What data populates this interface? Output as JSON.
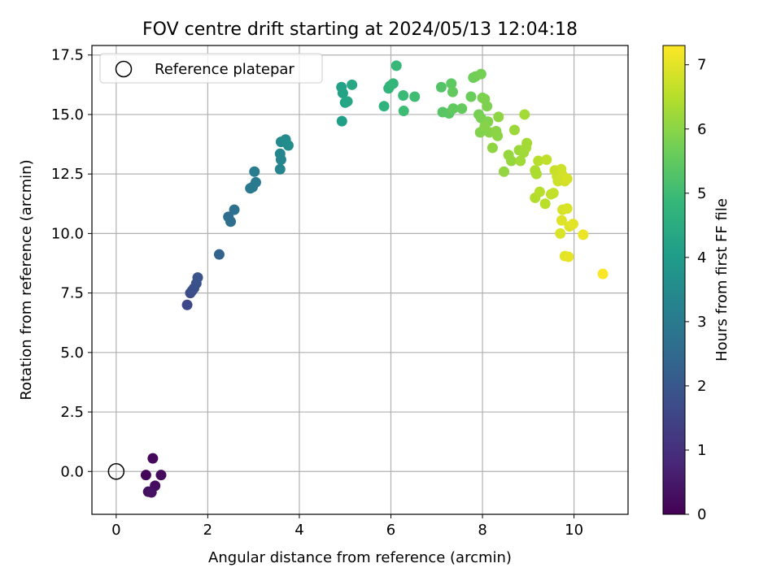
{
  "chart_data": {
    "type": "scatter",
    "title": "FOV centre drift starting at 2024/05/13 12:04:18",
    "xlabel": "Angular distance from reference (arcmin)",
    "ylabel": "Rotation from reference (arcmin)",
    "xlim": [
      -0.53,
      11.18
    ],
    "ylim": [
      -1.8,
      17.9
    ],
    "xticks": [
      0,
      2,
      4,
      6,
      8,
      10
    ],
    "yticks": [
      0.0,
      2.5,
      5.0,
      7.5,
      10.0,
      12.5,
      15.0,
      17.5
    ],
    "xtick_labels": [
      "0",
      "2",
      "4",
      "6",
      "8",
      "10"
    ],
    "ytick_labels": [
      "0.0",
      "2.5",
      "5.0",
      "7.5",
      "10.0",
      "12.5",
      "15.0",
      "17.5"
    ],
    "grid": true,
    "legend": {
      "position": "top-left",
      "entries": [
        "Reference platepar"
      ]
    },
    "reference_point": {
      "x": 0,
      "y": 0,
      "label": "Reference platepar"
    },
    "colorbar": {
      "label": "Hours from first FF file",
      "colormap": "viridis",
      "range": [
        0,
        7.3
      ],
      "ticks": [
        0,
        1,
        2,
        3,
        4,
        5,
        6,
        7
      ],
      "tick_labels": [
        "0",
        "1",
        "2",
        "3",
        "4",
        "5",
        "6",
        "7"
      ]
    },
    "points": [
      {
        "x": 0.8,
        "y": 0.55,
        "h": 0.15
      },
      {
        "x": 0.65,
        "y": -0.15,
        "h": 0.1
      },
      {
        "x": 0.98,
        "y": -0.15,
        "h": 0.2
      },
      {
        "x": 0.85,
        "y": -0.6,
        "h": 0.25
      },
      {
        "x": 0.7,
        "y": -0.85,
        "h": 0.3
      },
      {
        "x": 0.77,
        "y": -0.88,
        "h": 0.35
      },
      {
        "x": 1.55,
        "y": 7.0,
        "h": 1.6
      },
      {
        "x": 1.62,
        "y": 7.5,
        "h": 1.7
      },
      {
        "x": 1.66,
        "y": 7.6,
        "h": 1.75
      },
      {
        "x": 1.7,
        "y": 7.7,
        "h": 1.8
      },
      {
        "x": 1.75,
        "y": 7.9,
        "h": 1.85
      },
      {
        "x": 1.78,
        "y": 8.15,
        "h": 1.9
      },
      {
        "x": 2.25,
        "y": 9.12,
        "h": 2.3
      },
      {
        "x": 2.45,
        "y": 10.7,
        "h": 2.6
      },
      {
        "x": 2.5,
        "y": 10.5,
        "h": 2.65
      },
      {
        "x": 2.58,
        "y": 11.0,
        "h": 2.7
      },
      {
        "x": 2.93,
        "y": 11.9,
        "h": 2.9
      },
      {
        "x": 2.98,
        "y": 11.95,
        "h": 2.95
      },
      {
        "x": 3.05,
        "y": 12.15,
        "h": 3.0
      },
      {
        "x": 3.02,
        "y": 12.6,
        "h": 3.05
      },
      {
        "x": 3.58,
        "y": 12.7,
        "h": 3.3
      },
      {
        "x": 3.6,
        "y": 13.1,
        "h": 3.35
      },
      {
        "x": 3.58,
        "y": 13.35,
        "h": 3.4
      },
      {
        "x": 3.6,
        "y": 13.85,
        "h": 3.45
      },
      {
        "x": 3.7,
        "y": 13.95,
        "h": 3.5
      },
      {
        "x": 3.76,
        "y": 13.7,
        "h": 3.55
      },
      {
        "x": 4.93,
        "y": 14.72,
        "h": 4.1
      },
      {
        "x": 4.92,
        "y": 16.15,
        "h": 4.15
      },
      {
        "x": 4.95,
        "y": 15.9,
        "h": 4.2
      },
      {
        "x": 5.0,
        "y": 15.5,
        "h": 4.25
      },
      {
        "x": 5.05,
        "y": 15.55,
        "h": 4.3
      },
      {
        "x": 5.15,
        "y": 16.25,
        "h": 4.35
      },
      {
        "x": 5.85,
        "y": 15.35,
        "h": 4.7
      },
      {
        "x": 5.95,
        "y": 16.1,
        "h": 4.75
      },
      {
        "x": 5.98,
        "y": 16.2,
        "h": 4.8
      },
      {
        "x": 6.05,
        "y": 16.3,
        "h": 4.85
      },
      {
        "x": 6.12,
        "y": 17.05,
        "h": 4.9
      },
      {
        "x": 6.27,
        "y": 15.8,
        "h": 4.95
      },
      {
        "x": 6.28,
        "y": 15.15,
        "h": 5.0
      },
      {
        "x": 6.52,
        "y": 15.75,
        "h": 5.05
      },
      {
        "x": 7.1,
        "y": 16.15,
        "h": 5.3
      },
      {
        "x": 7.13,
        "y": 15.1,
        "h": 5.35
      },
      {
        "x": 7.27,
        "y": 15.05,
        "h": 5.4
      },
      {
        "x": 7.32,
        "y": 16.3,
        "h": 5.45
      },
      {
        "x": 7.35,
        "y": 15.95,
        "h": 5.5
      },
      {
        "x": 7.36,
        "y": 15.25,
        "h": 5.5
      },
      {
        "x": 7.55,
        "y": 15.25,
        "h": 5.55
      },
      {
        "x": 7.75,
        "y": 15.75,
        "h": 5.6
      },
      {
        "x": 7.8,
        "y": 16.55,
        "h": 5.65
      },
      {
        "x": 7.85,
        "y": 16.6,
        "h": 5.7
      },
      {
        "x": 7.97,
        "y": 16.7,
        "h": 5.75
      },
      {
        "x": 7.92,
        "y": 15.0,
        "h": 5.75
      },
      {
        "x": 7.97,
        "y": 14.85,
        "h": 5.8
      },
      {
        "x": 8.0,
        "y": 15.7,
        "h": 5.8
      },
      {
        "x": 8.05,
        "y": 15.65,
        "h": 5.85
      },
      {
        "x": 8.1,
        "y": 15.35,
        "h": 5.85
      },
      {
        "x": 8.12,
        "y": 14.7,
        "h": 5.9
      },
      {
        "x": 7.95,
        "y": 14.25,
        "h": 5.9
      },
      {
        "x": 8.05,
        "y": 14.5,
        "h": 5.95
      },
      {
        "x": 8.15,
        "y": 14.25,
        "h": 5.95
      },
      {
        "x": 8.3,
        "y": 14.3,
        "h": 6.0
      },
      {
        "x": 8.33,
        "y": 14.1,
        "h": 6.0
      },
      {
        "x": 8.35,
        "y": 14.9,
        "h": 6.05
      },
      {
        "x": 8.22,
        "y": 13.6,
        "h": 6.05
      },
      {
        "x": 8.47,
        "y": 12.6,
        "h": 6.1
      },
      {
        "x": 8.57,
        "y": 13.3,
        "h": 6.15
      },
      {
        "x": 8.63,
        "y": 13.05,
        "h": 6.15
      },
      {
        "x": 8.7,
        "y": 14.35,
        "h": 6.2
      },
      {
        "x": 8.8,
        "y": 13.5,
        "h": 6.2
      },
      {
        "x": 8.83,
        "y": 13.05,
        "h": 6.25
      },
      {
        "x": 8.9,
        "y": 13.4,
        "h": 6.25
      },
      {
        "x": 8.95,
        "y": 13.6,
        "h": 6.3
      },
      {
        "x": 8.97,
        "y": 13.8,
        "h": 6.3
      },
      {
        "x": 8.92,
        "y": 15.0,
        "h": 6.3
      },
      {
        "x": 9.15,
        "y": 12.65,
        "h": 6.4
      },
      {
        "x": 9.18,
        "y": 12.5,
        "h": 6.4
      },
      {
        "x": 9.15,
        "y": 11.5,
        "h": 6.45
      },
      {
        "x": 9.25,
        "y": 11.75,
        "h": 6.5
      },
      {
        "x": 9.22,
        "y": 13.05,
        "h": 6.5
      },
      {
        "x": 9.37,
        "y": 11.25,
        "h": 6.55
      },
      {
        "x": 9.4,
        "y": 13.1,
        "h": 6.6
      },
      {
        "x": 9.5,
        "y": 11.65,
        "h": 6.6
      },
      {
        "x": 9.55,
        "y": 11.7,
        "h": 6.65
      },
      {
        "x": 9.58,
        "y": 12.65,
        "h": 6.7
      },
      {
        "x": 9.63,
        "y": 12.4,
        "h": 6.7
      },
      {
        "x": 9.65,
        "y": 12.2,
        "h": 6.75
      },
      {
        "x": 9.72,
        "y": 12.7,
        "h": 6.75
      },
      {
        "x": 9.75,
        "y": 12.45,
        "h": 6.8
      },
      {
        "x": 9.8,
        "y": 12.2,
        "h": 6.8
      },
      {
        "x": 9.85,
        "y": 12.3,
        "h": 6.85
      },
      {
        "x": 9.75,
        "y": 11.0,
        "h": 6.85
      },
      {
        "x": 9.85,
        "y": 11.05,
        "h": 6.9
      },
      {
        "x": 9.7,
        "y": 10.0,
        "h": 6.9
      },
      {
        "x": 9.73,
        "y": 10.55,
        "h": 6.95
      },
      {
        "x": 9.9,
        "y": 10.3,
        "h": 6.95
      },
      {
        "x": 9.98,
        "y": 10.4,
        "h": 7.0
      },
      {
        "x": 9.8,
        "y": 9.05,
        "h": 7.0
      },
      {
        "x": 9.88,
        "y": 9.02,
        "h": 7.05
      },
      {
        "x": 10.2,
        "y": 9.95,
        "h": 7.1
      },
      {
        "x": 10.63,
        "y": 8.3,
        "h": 7.25
      }
    ]
  }
}
